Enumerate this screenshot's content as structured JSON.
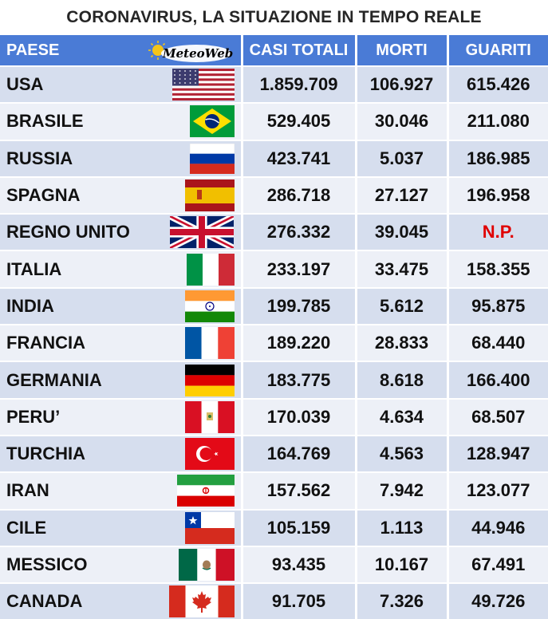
{
  "title": "CORONAVIRUS, LA SITUAZIONE IN TEMPO REALE",
  "logo": "MeteoWeb",
  "headers": [
    "PAESE",
    "CASI TOTALI",
    "MORTI",
    "GUARITI"
  ],
  "rows": [
    {
      "country": "USA",
      "flag": "usa",
      "cases": "1.859.709",
      "deaths": "106.927",
      "recovered": "615.426"
    },
    {
      "country": "BRASILE",
      "flag": "brazil",
      "cases": "529.405",
      "deaths": "30.046",
      "recovered": "211.080"
    },
    {
      "country": "RUSSIA",
      "flag": "russia",
      "cases": "423.741",
      "deaths": "5.037",
      "recovered": "186.985"
    },
    {
      "country": "SPAGNA",
      "flag": "spain",
      "cases": "286.718",
      "deaths": "27.127",
      "recovered": "196.958"
    },
    {
      "country": "REGNO UNITO",
      "flag": "uk",
      "cases": "276.332",
      "deaths": "39.045",
      "recovered": "N.P."
    },
    {
      "country": "ITALIA",
      "flag": "italy",
      "cases": "233.197",
      "deaths": "33.475",
      "recovered": "158.355"
    },
    {
      "country": "INDIA",
      "flag": "india",
      "cases": "199.785",
      "deaths": "5.612",
      "recovered": "95.875"
    },
    {
      "country": "FRANCIA",
      "flag": "france",
      "cases": "189.220",
      "deaths": "28.833",
      "recovered": "68.440"
    },
    {
      "country": "GERMANIA",
      "flag": "germany",
      "cases": "183.775",
      "deaths": "8.618",
      "recovered": "166.400"
    },
    {
      "country": "PERU’",
      "flag": "peru",
      "cases": "170.039",
      "deaths": "4.634",
      "recovered": "68.507"
    },
    {
      "country": "TURCHIA",
      "flag": "turkey",
      "cases": "164.769",
      "deaths": "4.563",
      "recovered": "128.947"
    },
    {
      "country": "IRAN",
      "flag": "iran",
      "cases": "157.562",
      "deaths": "7.942",
      "recovered": "123.077"
    },
    {
      "country": "CILE",
      "flag": "chile",
      "cases": "105.159",
      "deaths": "1.113",
      "recovered": "44.946"
    },
    {
      "country": "MESSICO",
      "flag": "mexico",
      "cases": "93.435",
      "deaths": "10.167",
      "recovered": "67.491"
    },
    {
      "country": "CANADA",
      "flag": "canada",
      "cases": "91.705",
      "deaths": "7.326",
      "recovered": "49.726"
    }
  ],
  "colors": {
    "header": "#4a7bd6",
    "row_odd": "#d6deee",
    "row_even": "#edf0f7",
    "np": "#e00000"
  }
}
